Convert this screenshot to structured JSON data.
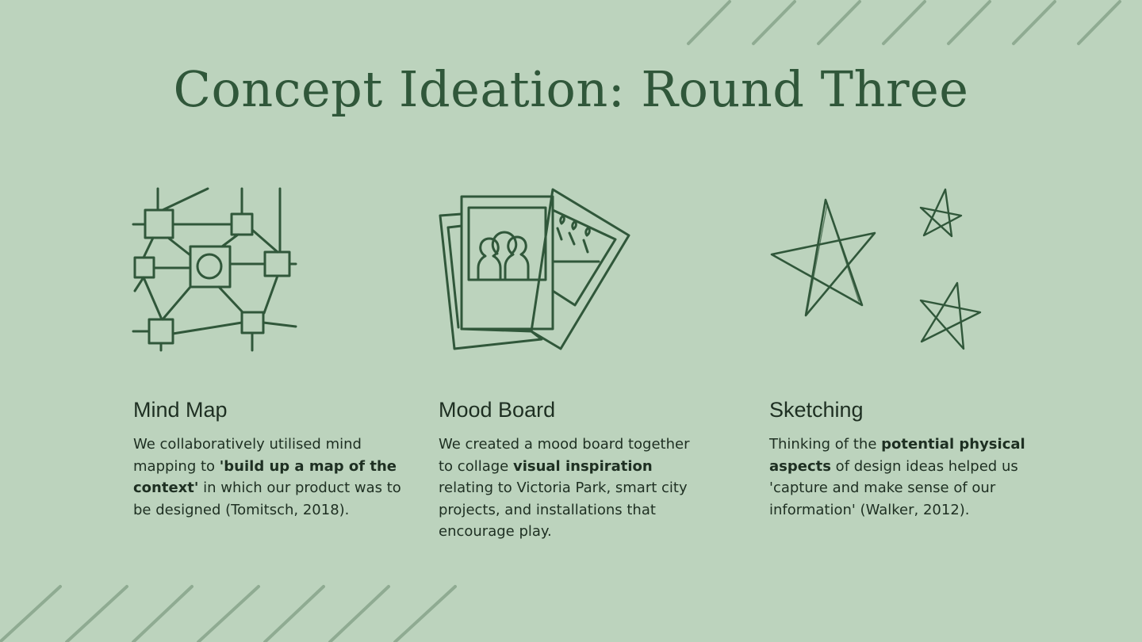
{
  "title": "Concept Ideation: Round Three",
  "colors": {
    "background": "#bcd3bd",
    "accent": "#30573a",
    "text": "#1e2f22",
    "stripes": "#8fab92"
  },
  "columns": [
    {
      "icon": "mind-map-icon",
      "heading": "Mind Map",
      "parts": [
        "We collaboratively utilised mind mapping to ",
        "'build up a map of the context'",
        " in which our product was to be designed (Tomitsch, 2018)."
      ]
    },
    {
      "icon": "photos-icon",
      "heading": "Mood Board",
      "parts": [
        "We created a mood board together to collage ",
        "visual inspiration",
        " relating to Victoria Park, smart city projects, and installations that encourage play."
      ]
    },
    {
      "icon": "stars-icon",
      "heading": "Sketching",
      "parts": [
        "Thinking of the ",
        "potential physical aspects",
        " of design ideas helped us 'capture and make sense of our information' (Walker, 2012)."
      ]
    }
  ]
}
